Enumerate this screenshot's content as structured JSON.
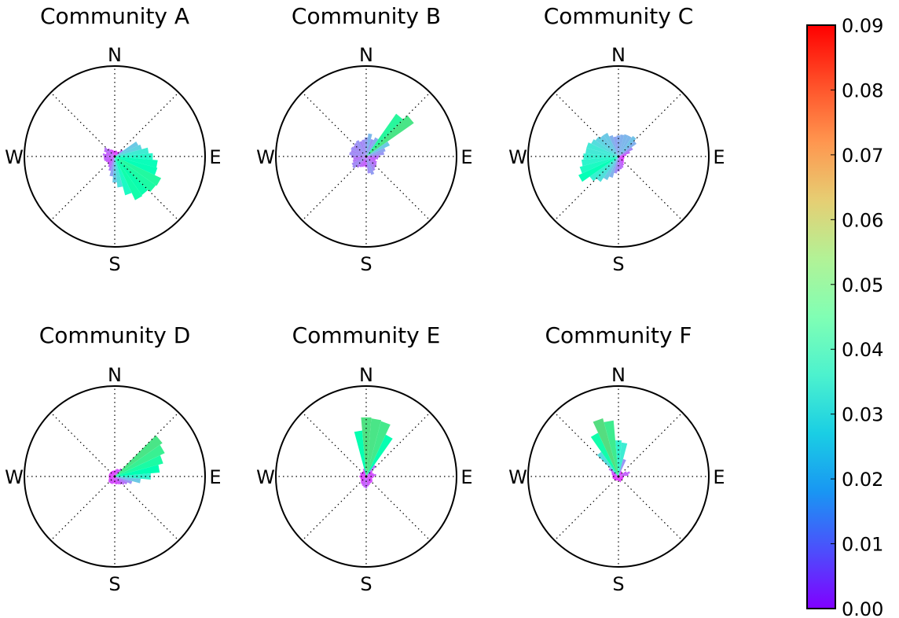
{
  "chart_data": {
    "type": "polar-bar",
    "colorbar": {
      "min": 0.0,
      "max": 0.09,
      "ticks": [
        "0.00",
        "0.01",
        "0.02",
        "0.03",
        "0.04",
        "0.05",
        "0.06",
        "0.07",
        "0.08",
        "0.09"
      ],
      "colormap": "rainbow"
    },
    "direction_labels": [
      "N",
      "E",
      "S",
      "W"
    ],
    "rmax": 0.09,
    "bin_width_deg": 10,
    "panels": [
      {
        "title": "Community A",
        "angles_deg": [
          0,
          10,
          20,
          30,
          40,
          50,
          60,
          70,
          80,
          90,
          100,
          110,
          120,
          130,
          140,
          150,
          160,
          170,
          180,
          190,
          200,
          210,
          220,
          230,
          240,
          250,
          260,
          270,
          280,
          290,
          300,
          310,
          320,
          330,
          340,
          350
        ],
        "values": [
          0.005,
          0.006,
          0.006,
          0.005,
          0.006,
          0.01,
          0.026,
          0.028,
          0.034,
          0.038,
          0.043,
          0.044,
          0.051,
          0.05,
          0.047,
          0.048,
          0.04,
          0.031,
          0.026,
          0.02,
          0.015,
          0.012,
          0.01,
          0.009,
          0.01,
          0.011,
          0.011,
          0.011,
          0.012,
          0.009,
          0.012,
          0.013,
          0.01,
          0.008,
          0.007,
          0.006
        ]
      },
      {
        "title": "Community B",
        "angles_deg": [
          0,
          10,
          20,
          30,
          40,
          50,
          60,
          70,
          80,
          90,
          100,
          110,
          120,
          130,
          140,
          150,
          160,
          170,
          180,
          190,
          200,
          210,
          220,
          230,
          240,
          250,
          260,
          270,
          280,
          290,
          300,
          310,
          320,
          330,
          340,
          350
        ],
        "values": [
          0.019,
          0.023,
          0.018,
          0.021,
          0.052,
          0.058,
          0.026,
          0.02,
          0.018,
          0.013,
          0.012,
          0.01,
          0.012,
          0.013,
          0.014,
          0.016,
          0.019,
          0.017,
          0.011,
          0.01,
          0.011,
          0.012,
          0.014,
          0.017,
          0.016,
          0.014,
          0.013,
          0.015,
          0.017,
          0.016,
          0.017,
          0.016,
          0.017,
          0.018,
          0.016,
          0.017
        ]
      },
      {
        "title": "Community C",
        "angles_deg": [
          0,
          10,
          20,
          30,
          40,
          50,
          60,
          70,
          80,
          90,
          100,
          110,
          120,
          130,
          140,
          150,
          160,
          170,
          180,
          190,
          200,
          210,
          220,
          230,
          240,
          250,
          260,
          270,
          280,
          290,
          300,
          310,
          320,
          330,
          340,
          350
        ],
        "values": [
          0.021,
          0.022,
          0.023,
          0.023,
          0.025,
          0.022,
          0.016,
          0.012,
          0.008,
          0.006,
          0.006,
          0.006,
          0.006,
          0.007,
          0.008,
          0.01,
          0.012,
          0.013,
          0.015,
          0.017,
          0.022,
          0.026,
          0.031,
          0.035,
          0.044,
          0.04,
          0.037,
          0.035,
          0.033,
          0.033,
          0.03,
          0.028,
          0.026,
          0.026,
          0.022,
          0.02
        ]
      },
      {
        "title": "Community D",
        "angles_deg": [
          0,
          10,
          20,
          30,
          40,
          50,
          60,
          70,
          80,
          90,
          100,
          110,
          120,
          130,
          140,
          150,
          160,
          170,
          180,
          190,
          200,
          210,
          220,
          230,
          240,
          250,
          260,
          270,
          280,
          290,
          300,
          310,
          320,
          330,
          340,
          350
        ],
        "values": [
          0.006,
          0.007,
          0.008,
          0.008,
          0.01,
          0.058,
          0.055,
          0.05,
          0.045,
          0.036,
          0.026,
          0.018,
          0.014,
          0.012,
          0.01,
          0.009,
          0.008,
          0.008,
          0.007,
          0.007,
          0.008,
          0.008,
          0.008,
          0.008,
          0.007,
          0.006,
          0.006,
          0.006,
          0.006,
          0.006,
          0.006,
          0.006,
          0.006,
          0.006,
          0.006,
          0.006
        ]
      },
      {
        "title": "Community E",
        "angles_deg": [
          0,
          10,
          20,
          30,
          40,
          50,
          60,
          70,
          80,
          90,
          100,
          110,
          120,
          130,
          140,
          150,
          160,
          170,
          180,
          190,
          200,
          210,
          220,
          230,
          240,
          250,
          260,
          270,
          280,
          290,
          300,
          310,
          320,
          330,
          340,
          350
        ],
        "values": [
          0.059,
          0.058,
          0.057,
          0.046,
          0.014,
          0.008,
          0.007,
          0.008,
          0.01,
          0.008,
          0.007,
          0.006,
          0.007,
          0.008,
          0.008,
          0.008,
          0.009,
          0.01,
          0.012,
          0.011,
          0.01,
          0.009,
          0.008,
          0.007,
          0.006,
          0.006,
          0.006,
          0.007,
          0.006,
          0.006,
          0.007,
          0.006,
          0.006,
          0.006,
          0.008,
          0.046
        ]
      },
      {
        "title": "Community F",
        "angles_deg": [
          0,
          10,
          20,
          30,
          40,
          50,
          60,
          70,
          80,
          90,
          100,
          110,
          120,
          130,
          140,
          150,
          160,
          170,
          180,
          190,
          200,
          210,
          220,
          230,
          240,
          250,
          260,
          270,
          280,
          290,
          300,
          310,
          320,
          330,
          340,
          350
        ],
        "values": [
          0.036,
          0.034,
          0.018,
          0.006,
          0.005,
          0.005,
          0.009,
          0.012,
          0.01,
          0.005,
          0.005,
          0.005,
          0.005,
          0.005,
          0.005,
          0.005,
          0.006,
          0.005,
          0.004,
          0.004,
          0.004,
          0.005,
          0.005,
          0.005,
          0.005,
          0.006,
          0.006,
          0.006,
          0.006,
          0.007,
          0.008,
          0.012,
          0.03,
          0.048,
          0.06,
          0.056
        ]
      }
    ]
  }
}
